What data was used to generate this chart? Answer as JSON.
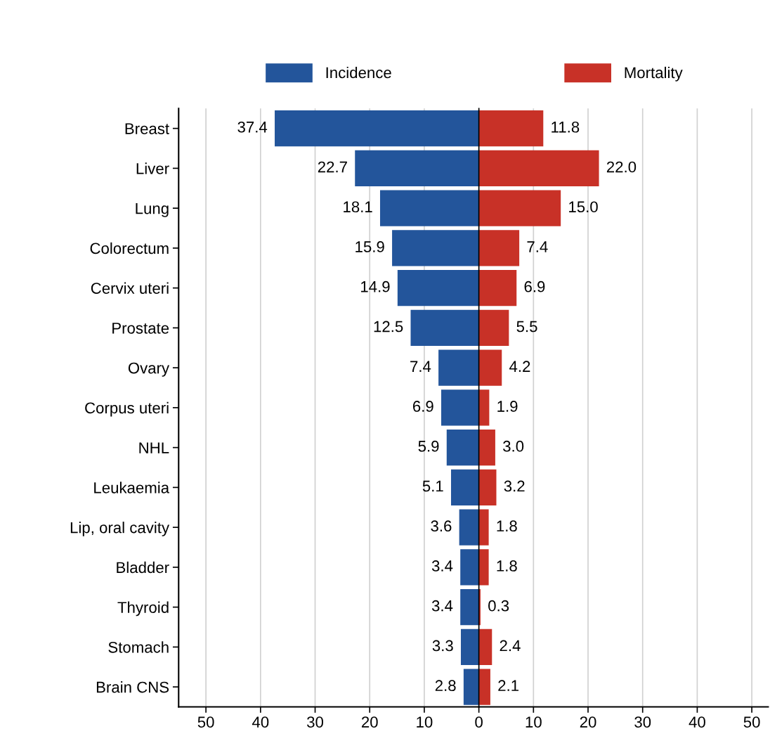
{
  "chart_data": [
    {
      "type": "bar",
      "orientation": "horizontal",
      "categories": [
        "Breast",
        "Liver",
        "Lung",
        "Colorectum",
        "Cervix uteri",
        "Prostate",
        "Ovary",
        "Corpus uteri",
        "NHL",
        "Leukaemia",
        "Lip, oral cavity",
        "Bladder",
        "Thyroid",
        "Stomach",
        "Brain CNS"
      ],
      "series": [
        {
          "name": "Incidence",
          "color": "#23559b",
          "values": [
            37.4,
            22.7,
            18.1,
            15.9,
            14.9,
            12.5,
            7.4,
            6.9,
            5.9,
            5.1,
            3.6,
            3.4,
            3.4,
            3.3,
            2.8
          ]
        }
      ],
      "data_labels": true,
      "xlim": [
        55,
        0
      ],
      "xticks": [
        50,
        40,
        30,
        20,
        10
      ],
      "grid": "x",
      "legend": "top"
    },
    {
      "type": "bar",
      "orientation": "horizontal",
      "series": [
        {
          "name": "Mortality",
          "color": "#c83127",
          "values": [
            11.8,
            22.0,
            15.0,
            7.4,
            6.9,
            5.5,
            4.2,
            1.9,
            3.0,
            3.2,
            1.8,
            1.8,
            0.3,
            2.4,
            2.1
          ],
          "value_labels": [
            "11.8",
            "22.0",
            "15.0",
            "7.4",
            "6.9",
            "5.5",
            "4.2",
            "1.9",
            "3.0",
            "3.2",
            "1.8",
            "1.8",
            "0.3",
            "2.4",
            "2.1"
          ]
        }
      ],
      "xlim": [
        0,
        53
      ],
      "xticks": [
        0,
        10,
        20,
        30,
        40,
        50
      ],
      "grid": "x",
      "legend": "top",
      "tick_labels": "x"
    }
  ]
}
